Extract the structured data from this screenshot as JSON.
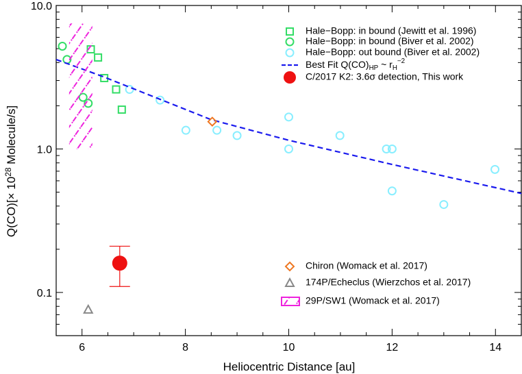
{
  "chart_data": {
    "type": "scatter",
    "xlabel": "Heliocentric Distance [au]",
    "ylabel": [
      {
        "text": "Q(CO)[× 10"
      },
      {
        "text": "28",
        "shift": "sup"
      },
      {
        "text": " Molecule/s]"
      }
    ],
    "xlim": [
      5.5,
      14.5
    ],
    "ylim": [
      0.05,
      10
    ],
    "log_y": true,
    "xticks": [
      6,
      8,
      10,
      12,
      14
    ],
    "xminor_ticks": [
      6.5,
      7,
      7.5,
      8.5,
      9,
      9.5,
      10.5,
      11,
      11.5,
      12.5,
      13,
      13.5
    ],
    "yticks": [
      0.1,
      {
        "value": 1,
        "label": "1.0"
      },
      {
        "value": 10,
        "label": "10.0"
      }
    ],
    "yminor_ticks": [
      0.06,
      0.07,
      0.08,
      0.09,
      0.2,
      0.3,
      0.4,
      0.5,
      0.6,
      0.7,
      0.8,
      0.9,
      2,
      3,
      4,
      5,
      6,
      7,
      8,
      9
    ],
    "series": [
      {
        "name": "Hale−Bopp: in bound (Jewitt et al. 1996)",
        "marker": "square",
        "color": "#33dd66",
        "x": [
          6.17,
          6.31,
          6.43,
          6.66,
          6.77
        ],
        "values": [
          4.95,
          4.34,
          3.12,
          2.6,
          1.88
        ]
      },
      {
        "name": "Hale−Bopp: in bound (Biver et al. 2002)",
        "marker": "circle",
        "color": "#33dd66",
        "x": [
          5.62,
          5.71,
          6.02,
          6.12
        ],
        "values": [
          5.2,
          4.2,
          2.29,
          2.08
        ]
      },
      {
        "name": "Hale−Bopp: out bound (Biver et al. 2002)",
        "marker": "circle",
        "color": "#88eeff",
        "x": [
          6.92,
          7.51,
          8.01,
          8.61,
          9.0,
          10.0,
          10.0,
          10.99,
          11.89,
          12.0,
          12.0,
          13.0,
          13.99
        ],
        "values": [
          2.6,
          2.19,
          1.35,
          1.35,
          1.24,
          1.67,
          1.0,
          1.24,
          1.0,
          1.0,
          0.51,
          0.41,
          0.72
        ]
      },
      {
        "name": [
          {
            "text": "Best Fit Q(CO)"
          },
          {
            "text": "HP",
            "shift": "sub"
          },
          {
            "text": " ~ r"
          },
          {
            "text": "H",
            "shift": "sub"
          },
          {
            "text": "−2",
            "shift": "sup"
          }
        ],
        "marker": "dashed",
        "color": "#1a1aee",
        "x": [
          5.5,
          6.4,
          8.5,
          10,
          12,
          14.5
        ],
        "values": [
          4.2,
          3.2,
          1.6,
          1.15,
          0.78,
          0.49
        ]
      },
      {
        "name": "C/2017 K2: 3.6σ detection, This work",
        "marker": "dot",
        "color": "#ee1111",
        "x": [
          6.73
        ],
        "values": [
          0.16
        ],
        "yerr": [
          0.05
        ]
      },
      {
        "name": "Chiron (Womack et al. 2017)",
        "marker": "diamond",
        "color": "#ee7722",
        "x": [
          8.52
        ],
        "values": [
          1.55
        ]
      },
      {
        "name": "174P/Echeclus (Wierzchos et al. 2017)",
        "marker": "triangle",
        "color": "#888888",
        "x": [
          6.12
        ],
        "values": [
          0.076
        ]
      },
      {
        "name": "29P/SW1 (Womack et al. 2017)",
        "marker": "hatch",
        "color": "#ee22dd",
        "x": [
          5.75,
          6.2
        ],
        "values": [
          1.0,
          7.5
        ]
      }
    ]
  }
}
